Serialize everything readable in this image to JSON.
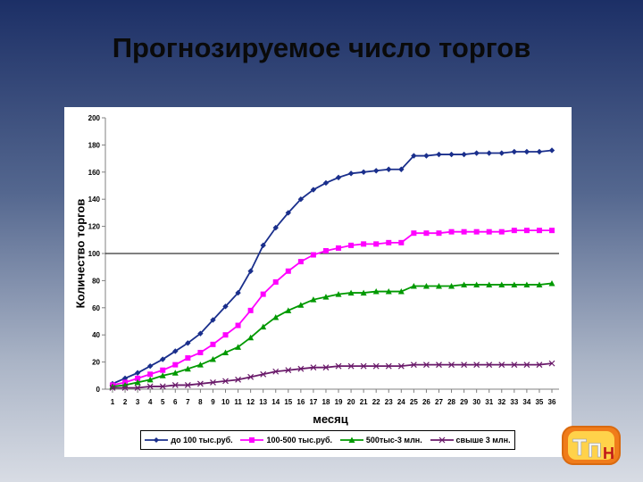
{
  "slide": {
    "title": "Прогнозируемое число торгов"
  },
  "logo": {
    "text": "ТПН",
    "colors": {
      "outer": "#f07c1a",
      "inner": "#ffd24a",
      "letters": "#e8e8e8",
      "accent_letter": "#c01818"
    }
  },
  "chart_data": {
    "type": "line",
    "title": "",
    "xlabel": "месяц",
    "ylabel": "Количество торгов",
    "ylim": [
      0,
      200
    ],
    "yticks": [
      0,
      20,
      40,
      60,
      80,
      100,
      120,
      140,
      160,
      180,
      200
    ],
    "reference_line": 100,
    "grid": false,
    "legend_position": "bottom",
    "categories": [
      "1",
      "2",
      "3",
      "4",
      "5",
      "6",
      "7",
      "8",
      "9",
      "10",
      "11",
      "12",
      "13",
      "14",
      "15",
      "16",
      "17",
      "18",
      "19",
      "20",
      "21",
      "22",
      "23",
      "24",
      "25",
      "26",
      "27",
      "28",
      "29",
      "30",
      "31",
      "32",
      "33",
      "34",
      "35",
      "36"
    ],
    "series": [
      {
        "name": "до 100 тыс.руб.",
        "color": "#1a2f8c",
        "marker": "diamond",
        "values": [
          4,
          8,
          12,
          17,
          22,
          28,
          34,
          41,
          51,
          61,
          71,
          87,
          106,
          119,
          130,
          140,
          147,
          152,
          156,
          159,
          160,
          161,
          162,
          162,
          172,
          172,
          173,
          173,
          173,
          174,
          174,
          174,
          175,
          175,
          175,
          176
        ]
      },
      {
        "name": "100-500 тыс.руб.",
        "color": "#ff00ff",
        "marker": "square",
        "values": [
          3,
          5,
          8,
          11,
          14,
          18,
          23,
          27,
          33,
          40,
          47,
          58,
          70,
          79,
          87,
          94,
          99,
          102,
          104,
          106,
          107,
          107,
          108,
          108,
          115,
          115,
          115,
          116,
          116,
          116,
          116,
          116,
          117,
          117,
          117,
          117
        ]
      },
      {
        "name": "500тыс-3 млн.",
        "color": "#009900",
        "marker": "triangle",
        "values": [
          2,
          3,
          5,
          7,
          10,
          12,
          15,
          18,
          22,
          27,
          31,
          38,
          46,
          53,
          58,
          62,
          66,
          68,
          70,
          71,
          71,
          72,
          72,
          72,
          76,
          76,
          76,
          76,
          77,
          77,
          77,
          77,
          77,
          77,
          77,
          78
        ]
      },
      {
        "name": "свыше 3 млн.",
        "color": "#6a1a6a",
        "marker": "x",
        "values": [
          1,
          1,
          1,
          2,
          2,
          3,
          3,
          4,
          5,
          6,
          7,
          9,
          11,
          13,
          14,
          15,
          16,
          16,
          17,
          17,
          17,
          17,
          17,
          17,
          18,
          18,
          18,
          18,
          18,
          18,
          18,
          18,
          18,
          18,
          18,
          19
        ]
      }
    ]
  }
}
